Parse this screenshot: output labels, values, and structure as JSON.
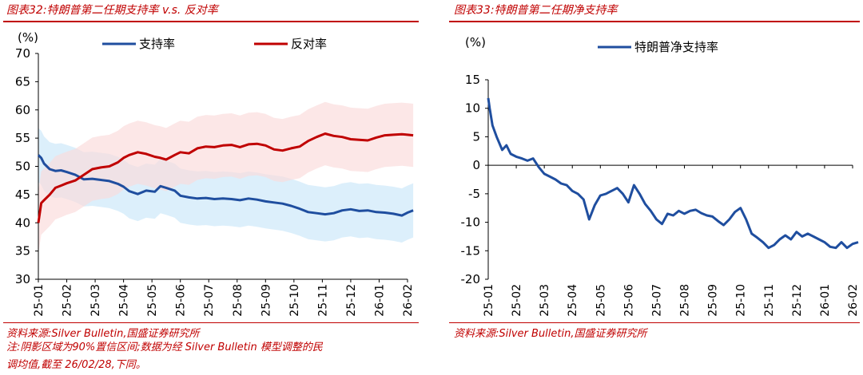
{
  "left_panel": {
    "title": "图表32:特朗普第二任期支持率 v.s. 反对率",
    "source": "资料来源:Silver Bulletin,国盛证券研究所",
    "note_line1": "注:阴影区域为90%置信区间;数据为经 Silver Bulletin 模型调整的民",
    "note_line2": "调均值,截至 26/02/28,下同。"
  },
  "right_panel": {
    "title": "图表33:特朗普第二任期净支持率",
    "source": "资料来源:Silver Bulletin,国盛证券研究所"
  },
  "colors": {
    "approve": "#1f4e9f",
    "disapprove": "#c00000",
    "approve_band": "#d6ecfa",
    "disapprove_band": "#fadada",
    "accent": "#c00000"
  },
  "chart_data": [
    {
      "type": "line",
      "title": "特朗普第二任期支持率 v.s. 反对率",
      "unit_label": "(%)",
      "ylim": [
        30,
        70
      ],
      "yticks": [
        "30",
        "35",
        "40",
        "45",
        "50",
        "55",
        "60",
        "65",
        "70"
      ],
      "categories": [
        "25-01",
        "25-02",
        "25-03",
        "25-04",
        "25-05",
        "25-06",
        "25-07",
        "25-08",
        "25-09",
        "25-10",
        "25-11",
        "25-12",
        "26-01",
        "26-02"
      ],
      "x": [
        0,
        0.1,
        0.2,
        0.4,
        0.6,
        0.8,
        1.0,
        1.3,
        1.6,
        1.9,
        2.2,
        2.5,
        2.8,
        3.0,
        3.2,
        3.5,
        3.8,
        4.1,
        4.3,
        4.5,
        4.8,
        5.0,
        5.3,
        5.6,
        5.9,
        6.2,
        6.5,
        6.8,
        7.1,
        7.4,
        7.7,
        8.0,
        8.3,
        8.6,
        8.9,
        9.2,
        9.5,
        9.8,
        10.1,
        10.4,
        10.7,
        11.0,
        11.3,
        11.6,
        11.9,
        12.2,
        12.5,
        12.8,
        13.0,
        13.2
      ],
      "series": [
        {
          "name": "支持率",
          "values": [
            52,
            51.5,
            50.5,
            49.5,
            49.2,
            49.3,
            49,
            48.5,
            47.7,
            47.8,
            47.6,
            47.4,
            46.9,
            46.4,
            45.6,
            45.1,
            45.7,
            45.5,
            46.5,
            46.2,
            45.7,
            44.8,
            44.5,
            44.3,
            44.4,
            44.2,
            44.3,
            44.2,
            44.0,
            44.3,
            44.1,
            43.8,
            43.6,
            43.4,
            43.0,
            42.5,
            41.9,
            41.7,
            41.5,
            41.7,
            42.2,
            42.4,
            42.1,
            42.2,
            41.9,
            41.8,
            41.6,
            41.3,
            41.8,
            42.2
          ],
          "band_half_width": 4.8
        },
        {
          "name": "反对率",
          "values": [
            40,
            43.5,
            44,
            45,
            46.2,
            46.6,
            47,
            47.5,
            48.5,
            49.5,
            49.8,
            50,
            50.7,
            51.5,
            52,
            52.5,
            52.2,
            51.7,
            51.5,
            51.2,
            52,
            52.5,
            52.3,
            53.2,
            53.5,
            53.4,
            53.7,
            53.8,
            53.4,
            53.9,
            54,
            53.7,
            53,
            52.8,
            53.2,
            53.5,
            54.5,
            55.2,
            55.8,
            55.4,
            55.2,
            54.8,
            54.7,
            54.6,
            55.1,
            55.5,
            55.6,
            55.7,
            55.6,
            55.5
          ],
          "band_half_width": 5.6
        }
      ]
    },
    {
      "type": "line",
      "title": "特朗普第二任期净支持率",
      "unit_label": "(%)",
      "ylim": [
        -20,
        15
      ],
      "yticks": [
        "-20",
        "-15",
        "-10",
        "-5",
        "0",
        "5",
        "10",
        "15"
      ],
      "categories": [
        "25-01",
        "25-02",
        "25-03",
        "25-04",
        "25-05",
        "25-06",
        "25-07",
        "25-08",
        "25-09",
        "25-10",
        "25-11",
        "25-12",
        "26-01",
        "26-02"
      ],
      "x": [
        0,
        0.05,
        0.15,
        0.3,
        0.5,
        0.65,
        0.8,
        1.0,
        1.2,
        1.4,
        1.6,
        1.8,
        2.0,
        2.2,
        2.4,
        2.6,
        2.8,
        3.0,
        3.2,
        3.4,
        3.6,
        3.8,
        4.0,
        4.2,
        4.4,
        4.6,
        4.8,
        5.0,
        5.2,
        5.4,
        5.6,
        5.8,
        6.0,
        6.2,
        6.4,
        6.6,
        6.8,
        7.0,
        7.2,
        7.4,
        7.6,
        7.8,
        8.0,
        8.2,
        8.4,
        8.6,
        8.8,
        9.0,
        9.2,
        9.4,
        9.6,
        9.8,
        10.0,
        10.2,
        10.4,
        10.6,
        10.8,
        11.0,
        11.2,
        11.4,
        11.6,
        11.8,
        12.0,
        12.2,
        12.4,
        12.6,
        12.8,
        13.0,
        13.2
      ],
      "series": [
        {
          "name": "特朗普净支持率",
          "values": [
            11.8,
            10,
            7,
            5,
            2.7,
            3.5,
            2.0,
            1.5,
            1.2,
            0.8,
            1.2,
            -0.3,
            -1.5,
            -2.0,
            -2.5,
            -3.2,
            -3.5,
            -4.5,
            -5.0,
            -6.0,
            -9.5,
            -7.0,
            -5.3,
            -5.0,
            -4.5,
            -4.0,
            -5.0,
            -6.5,
            -3.5,
            -5.0,
            -6.8,
            -8.0,
            -9.5,
            -10.3,
            -8.5,
            -8.8,
            -8.0,
            -8.5,
            -8.0,
            -7.8,
            -8.4,
            -8.8,
            -9.0,
            -9.8,
            -10.5,
            -9.5,
            -8.2,
            -7.5,
            -9.5,
            -12.0,
            -12.7,
            -13.5,
            -14.5,
            -14.0,
            -13.0,
            -12.3,
            -13.0,
            -11.7,
            -12.5,
            -12.0,
            -12.5,
            -13.0,
            -13.5,
            -14.3,
            -14.5,
            -13.5,
            -14.5,
            -13.8,
            -13.5
          ]
        }
      ]
    }
  ]
}
